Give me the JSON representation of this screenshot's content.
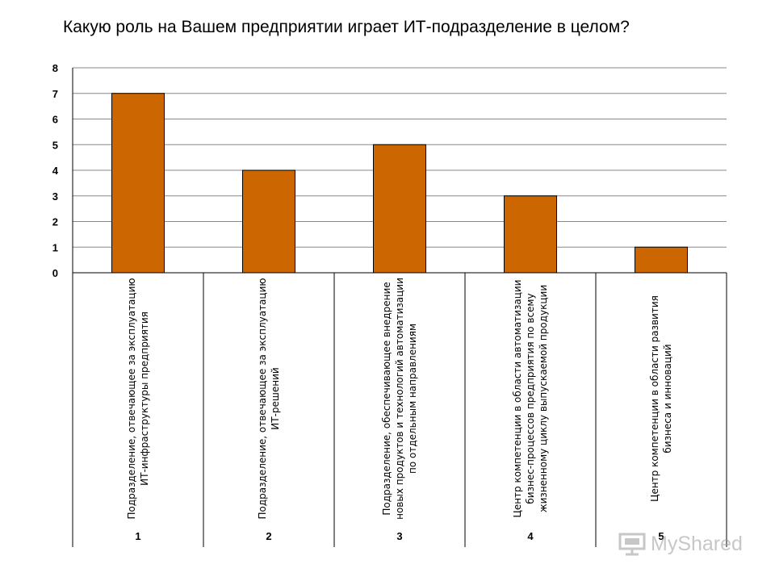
{
  "chart_data": {
    "type": "bar",
    "title": "Какую роль на Вашем предприятии играет ИТ-подразделение в целом?",
    "categories": [
      "1",
      "2",
      "3",
      "4",
      "5"
    ],
    "category_texts": [
      "Подразделение, отвечающее за эксплуатацию ИТ-инфраструктуры предприятия",
      "Подразделение, отвечающее за эксплуатацию ИТ-решений",
      "Подразделение, обеспечивающее внедрение новых продуктов и технологий автоматизации по отдельным направлениям",
      "Центр компетенции в области автоматизации бизнес-процессов предприятия по всему жизненному циклу выпускаемой продукции",
      "Центр компетенции в области развития бизнеса и инноваций"
    ],
    "values": [
      7,
      4,
      5,
      3,
      1
    ],
    "yticks": [
      "0",
      "1",
      "2",
      "3",
      "4",
      "5",
      "6",
      "7",
      "8"
    ],
    "ylim": [
      0,
      8
    ],
    "grid": true,
    "legend": "none",
    "bar_color": "#CC6600",
    "bar_edge_color": "#000000",
    "grid_color": "#888888"
  },
  "watermark": {
    "text": "MyShared",
    "icon": "presentation-screen-icon"
  }
}
